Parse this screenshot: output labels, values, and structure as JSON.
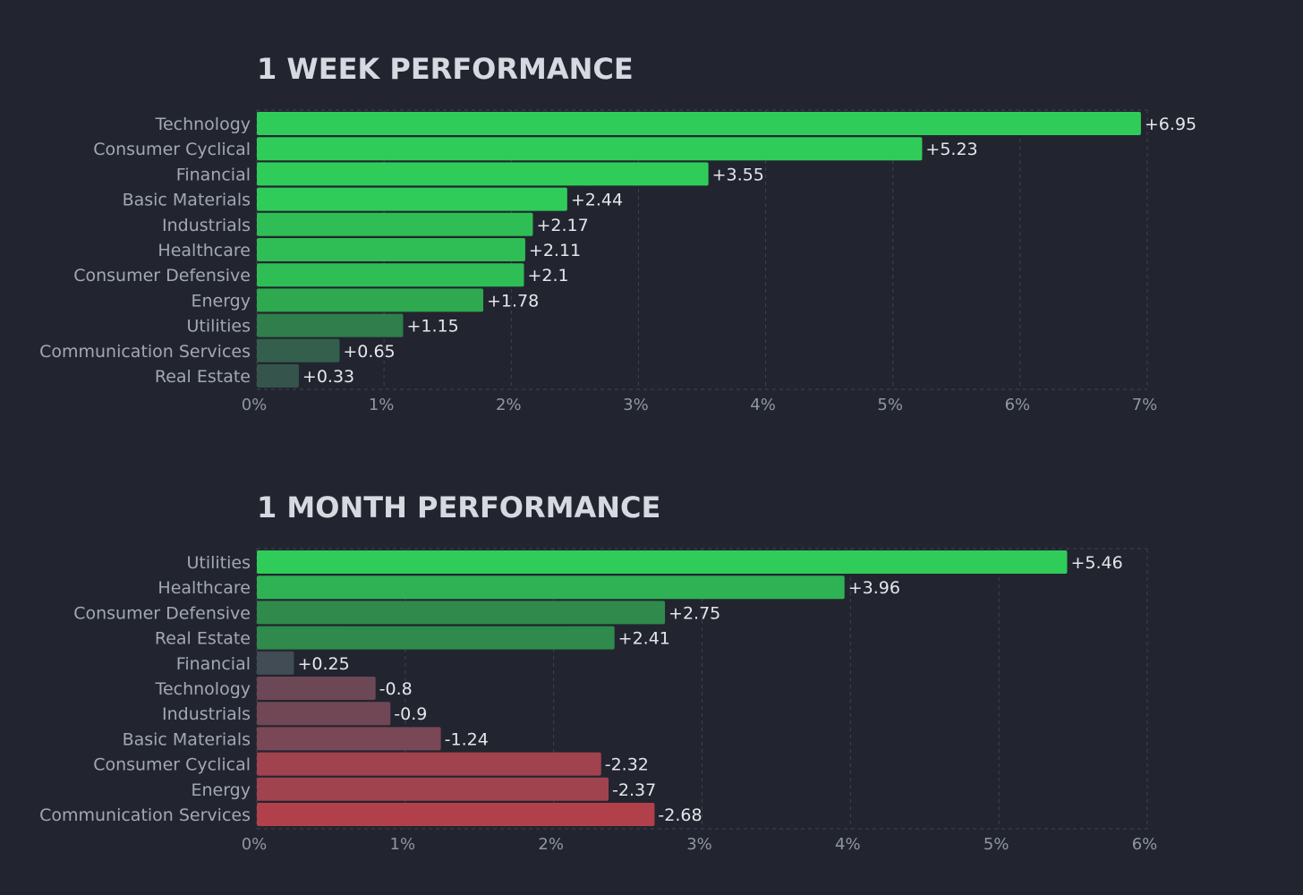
{
  "chart_data": [
    {
      "type": "bar",
      "orientation": "horizontal",
      "title": "1 WEEK PERFORMANCE",
      "categories": [
        "Technology",
        "Consumer Cyclical",
        "Financial",
        "Basic Materials",
        "Industrials",
        "Healthcare",
        "Consumer Defensive",
        "Energy",
        "Utilities",
        "Communication Services",
        "Real Estate"
      ],
      "values": [
        6.95,
        5.23,
        3.55,
        2.44,
        2.17,
        2.11,
        2.1,
        1.78,
        1.15,
        0.65,
        0.33
      ],
      "value_labels": [
        "+6.95",
        "+5.23",
        "+3.55",
        "+2.44",
        "+2.17",
        "+2.11",
        "+2.1",
        "+1.78",
        "+1.15",
        "+0.65",
        "+0.33"
      ],
      "bar_colors": [
        "#30cc5a",
        "#30cc5a",
        "#30cc5a",
        "#30cc5a",
        "#2fbe55",
        "#2fbe55",
        "#2fbe55",
        "#2ea94f",
        "#2f7e4b",
        "#335f4c",
        "#35554c"
      ],
      "xlim": [
        0,
        7
      ],
      "xticks": [
        "0%",
        "1%",
        "2%",
        "3%",
        "4%",
        "5%",
        "6%",
        "7%"
      ],
      "grid": true
    },
    {
      "type": "bar",
      "orientation": "horizontal",
      "title": "1 MONTH PERFORMANCE",
      "categories": [
        "Utilities",
        "Healthcare",
        "Consumer Defensive",
        "Real Estate",
        "Financial",
        "Technology",
        "Industrials",
        "Basic Materials",
        "Consumer Cyclical",
        "Energy",
        "Communication Services"
      ],
      "values": [
        5.46,
        3.96,
        2.75,
        2.41,
        0.25,
        -0.8,
        -0.9,
        -1.24,
        -2.32,
        -2.37,
        -2.68
      ],
      "value_labels": [
        "+5.46",
        "+3.96",
        "+2.75",
        "+2.41",
        "+0.25",
        "-0.8",
        "-0.9",
        "-1.24",
        "-2.32",
        "-2.37",
        "-2.68"
      ],
      "bar_colors": [
        "#30cc5a",
        "#2fb253",
        "#2f8a4c",
        "#2f8a4c",
        "#414c54",
        "#6c4755",
        "#714655",
        "#7a4756",
        "#a0434e",
        "#a0434e",
        "#b1404b"
      ],
      "xlim": [
        0,
        6
      ],
      "xticks": [
        "0%",
        "1%",
        "2%",
        "3%",
        "4%",
        "5%",
        "6%"
      ],
      "grid": true
    }
  ]
}
